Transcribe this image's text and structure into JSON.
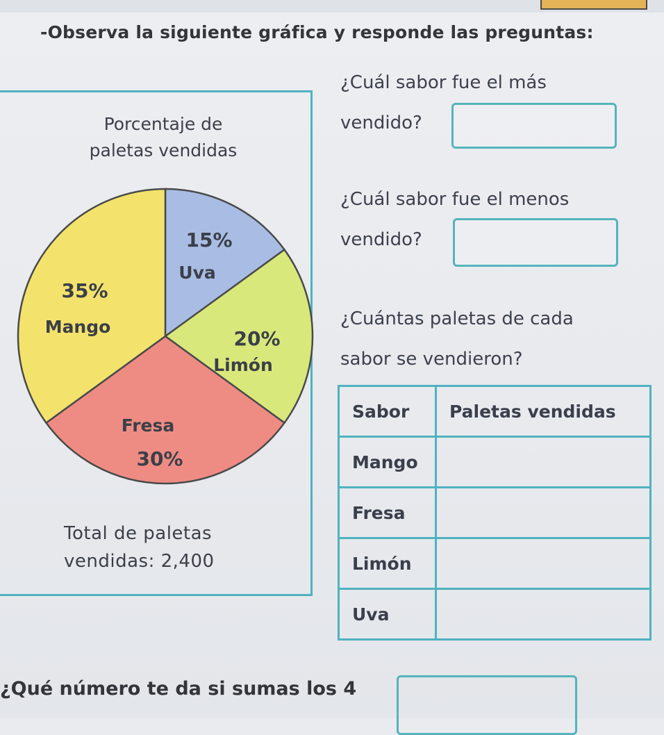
{
  "instruction": "-Observa la siguiente gráfica y responde las preguntas:",
  "chart_data": {
    "type": "pie",
    "title_lines": [
      "Porcentaje de",
      "paletas vendidas"
    ],
    "unit": "%",
    "slices": [
      {
        "name": "Uva",
        "value": 15,
        "label": "15%",
        "color": "#a9bde4"
      },
      {
        "name": "Limón",
        "value": 20,
        "label": "20%",
        "color": "#d9e87a"
      },
      {
        "name": "Fresa",
        "value": 30,
        "label": "30%",
        "color": "#ee8c84"
      },
      {
        "name": "Mango",
        "value": 35,
        "label": "35%",
        "color": "#f3e36c"
      }
    ],
    "start_angle_deg": 0,
    "direction": "clockwise",
    "note_lines": [
      "Total de paletas",
      "vendidas: 2,400"
    ]
  },
  "questions": {
    "q1_line1": "¿Cuál sabor fue el más",
    "q1_line2": "vendido?",
    "q2_line1": "¿Cuál sabor fue el menos",
    "q2_line2": "vendido?",
    "q3_line1": "¿Cuántas paletas de cada",
    "q3_line2": "sabor se vendieron?",
    "q4": "¿Qué número te da si sumas los 4"
  },
  "table": {
    "headers": [
      "Sabor",
      "Paletas vendidas"
    ],
    "rows": [
      "Mango",
      "Fresa",
      "Limón",
      "Uva"
    ]
  },
  "colors": {
    "accent": "#4fb2c0",
    "outline": "#4a4a4a"
  }
}
